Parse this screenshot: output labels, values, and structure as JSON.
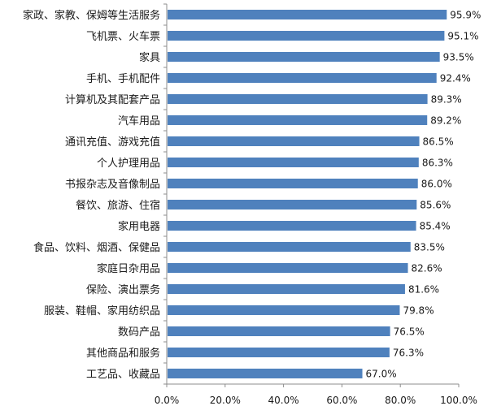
{
  "chart_data": {
    "type": "bar",
    "orientation": "horizontal",
    "categories": [
      "家政、家教、保姆等生活服务",
      "飞机票、火车票",
      "家具",
      "手机、手机配件",
      "计算机及其配套产品",
      "汽车用品",
      "通讯充值、游戏充值",
      "个人护理用品",
      "书报杂志及音像制品",
      "餐饮、旅游、住宿",
      "家用电器",
      "食品、饮料、烟酒、保健品",
      "家庭日杂用品",
      "保险、演出票务",
      "服装、鞋帽、家用纺织品",
      "数码产品",
      "其他商品和服务",
      "工艺品、收藏品"
    ],
    "values": [
      95.9,
      95.1,
      93.5,
      92.4,
      89.3,
      89.2,
      86.5,
      86.3,
      86.0,
      85.6,
      85.4,
      83.5,
      82.6,
      81.6,
      79.8,
      76.5,
      76.3,
      67.0
    ],
    "value_labels": [
      "95.9%",
      "95.1%",
      "93.5%",
      "92.4%",
      "89.3%",
      "89.2%",
      "86.5%",
      "86.3%",
      "86.0%",
      "85.6%",
      "85.4%",
      "83.5%",
      "82.6%",
      "81.6%",
      "79.8%",
      "76.5%",
      "76.3%",
      "67.0%"
    ],
    "xlim": [
      0,
      100
    ],
    "x_ticks": [
      0,
      20,
      40,
      60,
      80,
      100
    ],
    "x_tick_labels": [
      "0.0%",
      "20.0%",
      "40.0%",
      "60.0%",
      "80.0%",
      "100.0%"
    ],
    "title": "",
    "xlabel": "",
    "ylabel": "",
    "grid": false,
    "legend": "none",
    "bar_color": "#4f81bd"
  }
}
